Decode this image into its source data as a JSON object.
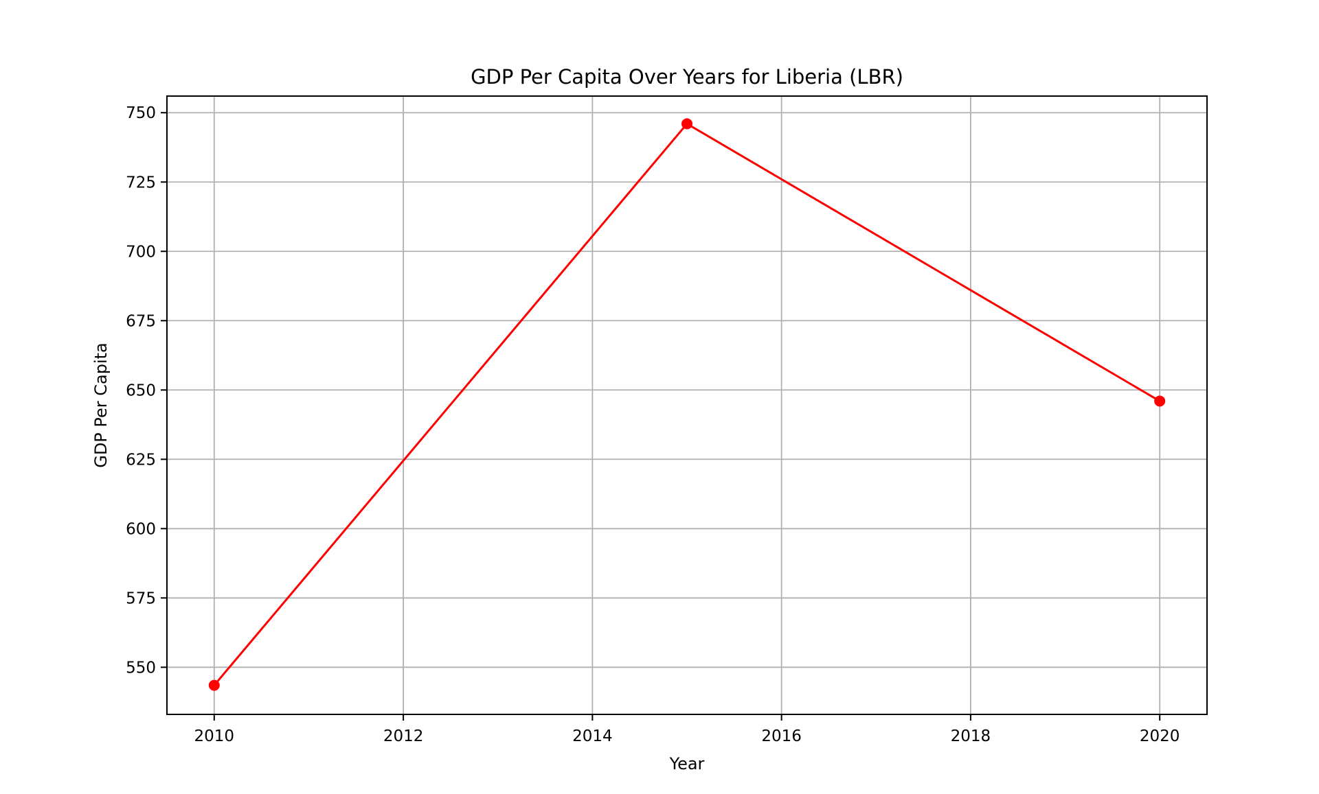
{
  "chart_data": {
    "type": "line",
    "title": "GDP Per Capita Over Years for Liberia (LBR)",
    "xlabel": "Year",
    "ylabel": "GDP Per Capita",
    "x": [
      2010,
      2015,
      2020
    ],
    "series": [
      {
        "values": [
          543.5,
          746.0,
          646.0
        ]
      }
    ],
    "xlim": [
      2009.5,
      2020.5
    ],
    "ylim": [
      533,
      756
    ],
    "xticks": [
      2010,
      2012,
      2014,
      2016,
      2018,
      2020
    ],
    "yticks": [
      550,
      575,
      600,
      625,
      650,
      675,
      700,
      725,
      750
    ],
    "grid": true,
    "line_color": "#ff0000",
    "marker": "circle"
  }
}
